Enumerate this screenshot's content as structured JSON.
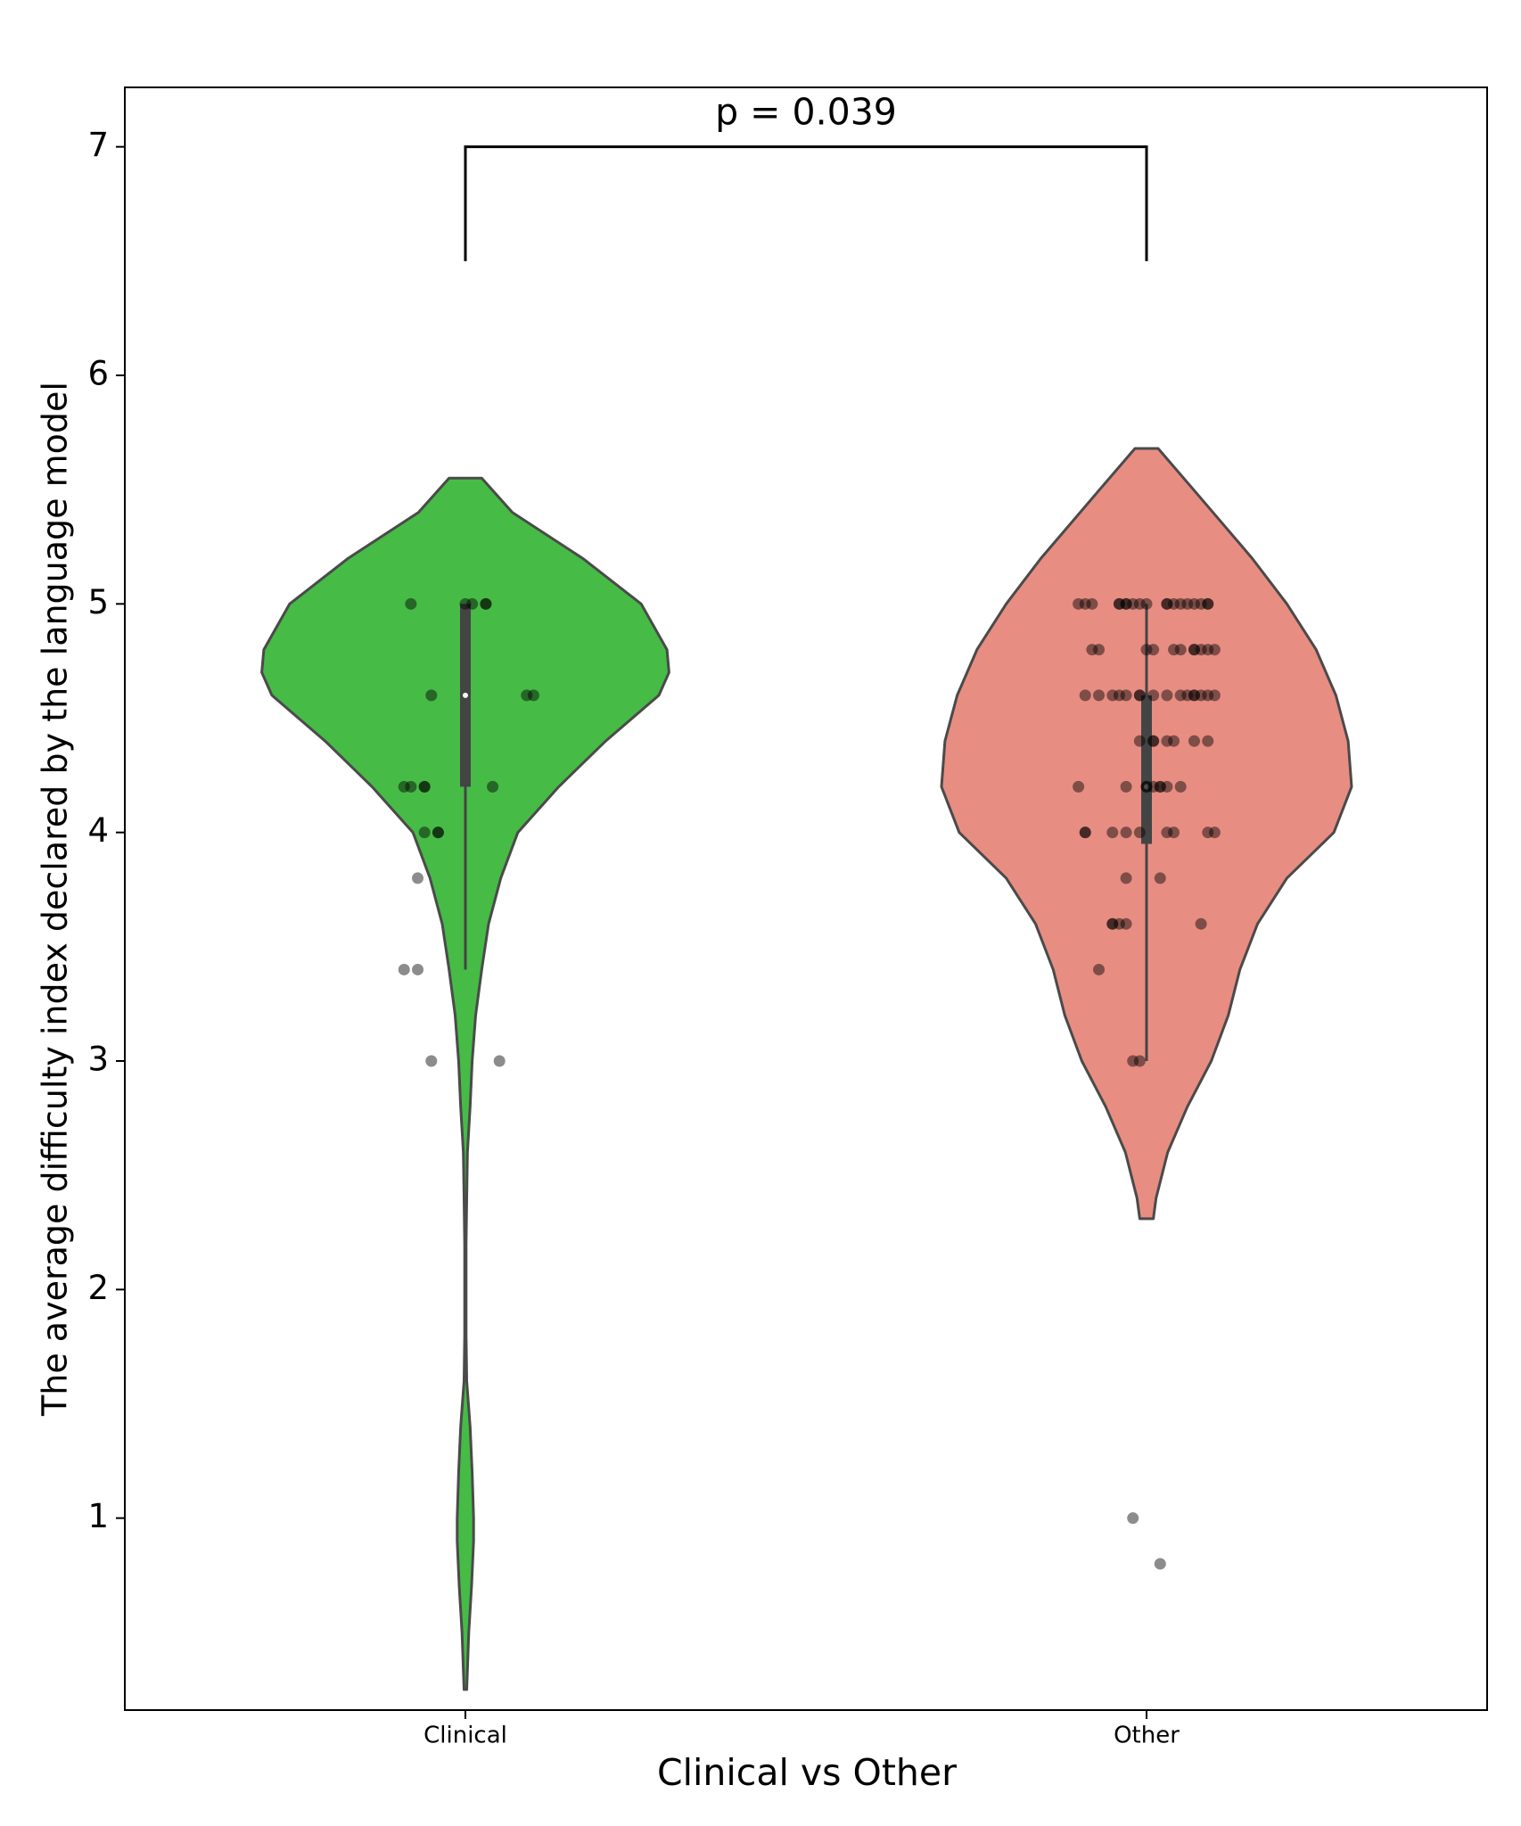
{
  "chart_data": {
    "type": "violin",
    "x_label": "Clinical vs Other",
    "y_label": "The average difficulty index declared by the language model",
    "categories": [
      "Clinical",
      "Other"
    ],
    "xlim": [
      -0.5,
      1.5
    ],
    "ylim": [
      0.16,
      7.26
    ],
    "yticks": [
      1,
      2,
      3,
      4,
      5,
      6,
      7
    ],
    "grid": false,
    "annotation": {
      "text": "p = 0.039",
      "y_top": 7,
      "y_bottom": 6.5
    },
    "series": [
      {
        "name": "Clinical",
        "color": "#46bb46",
        "violin": {
          "y": [
            5.55,
            5.4,
            5.2,
            5.0,
            4.8,
            4.7,
            4.6,
            4.4,
            4.2,
            4.0,
            3.8,
            3.6,
            3.4,
            3.2,
            3.0,
            2.8,
            2.6,
            2.4,
            2.2,
            2.0,
            1.8,
            1.6,
            1.4,
            1.2,
            1.0,
            0.9,
            0.7,
            0.5,
            0.25
          ],
          "half_width": [
            0.024,
            0.069,
            0.172,
            0.258,
            0.296,
            0.299,
            0.284,
            0.206,
            0.137,
            0.077,
            0.052,
            0.034,
            0.024,
            0.015,
            0.01,
            0.007,
            0.003,
            0.002,
            0.001,
            0.001,
            0.001,
            0.002,
            0.007,
            0.01,
            0.012,
            0.012,
            0.009,
            0.005,
            0.002
          ]
        },
        "box": {
          "whisker_low": 3.4,
          "q1": 4.2,
          "median": 4.6,
          "q3": 5.0,
          "whisker_high": 5.0
        },
        "points": {
          "x": [
            -0.08,
            0,
            0.01,
            0.03,
            0.03,
            -0.05,
            0.09,
            0.1,
            -0.09,
            -0.08,
            -0.06,
            -0.06,
            0.04,
            -0.06,
            -0.04,
            -0.04,
            -0.07,
            -0.09,
            -0.07,
            -0.05,
            0.05
          ],
          "y": [
            5,
            5,
            5,
            5,
            5,
            4.6,
            4.6,
            4.6,
            4.2,
            4.2,
            4.2,
            4.2,
            4.2,
            4,
            4,
            4,
            3.8,
            3.4,
            3.4,
            3,
            3
          ]
        }
      },
      {
        "name": "Other",
        "color": "#e88d82",
        "violin": {
          "y": [
            5.68,
            5.5,
            5.2,
            5.0,
            4.8,
            4.6,
            4.4,
            4.2,
            4.0,
            3.8,
            3.6,
            3.4,
            3.2,
            3.0,
            2.8,
            2.6,
            2.4,
            2.31
          ],
          "half_width": [
            0.017,
            0.069,
            0.155,
            0.206,
            0.249,
            0.278,
            0.296,
            0.301,
            0.275,
            0.206,
            0.163,
            0.137,
            0.12,
            0.095,
            0.06,
            0.031,
            0.014,
            0.01
          ]
        },
        "box": {
          "whisker_low": 3.0,
          "q1": 3.95,
          "median": 4.2,
          "q3": 4.6,
          "whisker_high": 5.0
        },
        "points": {
          "x": [
            0.9,
            0.91,
            0.92,
            0.96,
            0.96,
            0.97,
            0.97,
            0.98,
            0.99,
            1,
            1.03,
            1.03,
            1.04,
            1.05,
            1.06,
            1.07,
            1.08,
            1.09,
            1.09,
            0.92,
            0.93,
            1,
            1.01,
            1.04,
            1.05,
            1.07,
            1.07,
            1.08,
            1.09,
            1.1,
            0.91,
            0.93,
            0.95,
            0.96,
            0.97,
            0.99,
            0.99,
            1.01,
            1.03,
            1.05,
            1.06,
            1.07,
            1.07,
            1.08,
            1.09,
            1.1,
            0.99,
            1.01,
            1.01,
            1.03,
            1.04,
            1.07,
            1.09,
            0.9,
            0.97,
            1,
            1,
            1.01,
            1.02,
            1.02,
            1.03,
            1.05,
            0.91,
            0.91,
            0.95,
            0.97,
            0.99,
            1.03,
            1.04,
            1.09,
            1.1,
            0.97,
            1.02,
            0.95,
            0.95,
            0.96,
            0.97,
            1.08,
            0.93,
            0.98,
            0.99,
            0.98,
            1.02
          ],
          "y": [
            5,
            5,
            5,
            5,
            5,
            5,
            5,
            5,
            5,
            5,
            5,
            5,
            5,
            5,
            5,
            5,
            5,
            5,
            5,
            4.8,
            4.8,
            4.8,
            4.8,
            4.8,
            4.8,
            4.8,
            4.8,
            4.8,
            4.8,
            4.8,
            4.6,
            4.6,
            4.6,
            4.6,
            4.6,
            4.6,
            4.6,
            4.6,
            4.6,
            4.6,
            4.6,
            4.6,
            4.6,
            4.6,
            4.6,
            4.6,
            4.4,
            4.4,
            4.4,
            4.4,
            4.4,
            4.4,
            4.4,
            4.2,
            4.2,
            4.2,
            4.2,
            4.2,
            4.2,
            4.2,
            4.2,
            4.2,
            4,
            4,
            4,
            4,
            4,
            4,
            4,
            4,
            4,
            3.8,
            3.8,
            3.6,
            3.6,
            3.6,
            3.6,
            3.6,
            3.4,
            3,
            3,
            1,
            0.8
          ]
        }
      }
    ]
  }
}
